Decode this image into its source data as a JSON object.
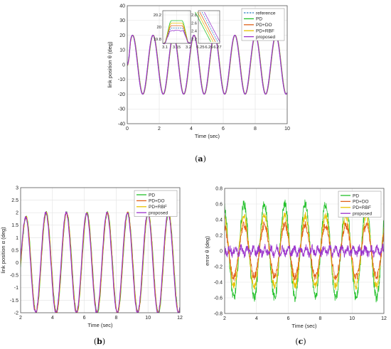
{
  "colors": {
    "reference": "#2f7fc1",
    "PD": "#22c02a",
    "PD+DO": "#e0601a",
    "PD+RBF": "#e8c200",
    "proposed": "#9932cc",
    "grid": "#e2e2e2",
    "box": "#444444"
  },
  "chart_data": [
    {
      "id": "a",
      "type": "line",
      "caption_letter": "a",
      "xlabel": "Time (sec)",
      "ylabel": "link position θ (deg)",
      "xlim": [
        0,
        10
      ],
      "ylim": [
        -40,
        40
      ],
      "xticks": [
        0,
        2,
        4,
        6,
        8,
        10
      ],
      "yticks": [
        -40,
        -30,
        -20,
        -10,
        0,
        10,
        20,
        30,
        40
      ],
      "grid": true,
      "legend_position": "top-right",
      "signal": {
        "form": "sine",
        "amplitude_deg": 20,
        "period_sec": 1.28
      },
      "series": [
        {
          "name": "reference",
          "style": "dashed"
        },
        {
          "name": "PD"
        },
        {
          "name": "PD+DO"
        },
        {
          "name": "PD+RBF"
        },
        {
          "name": "proposed"
        }
      ],
      "insets": [
        {
          "xticks": [
            "3.1",
            "3.15",
            "3.2"
          ],
          "yticks": [
            "19.8",
            "20",
            "20.2"
          ]
        },
        {
          "xticks": [
            "6.25",
            "6.26",
            "6.27"
          ],
          "yticks": [
            "2.2",
            "2.4",
            "2.6",
            "2.8"
          ]
        }
      ]
    },
    {
      "id": "b",
      "type": "line",
      "caption_letter": "b",
      "xlabel": "Time (sec)",
      "ylabel": "link position α (deg)",
      "xlim": [
        2,
        12
      ],
      "ylim": [
        -2,
        3
      ],
      "xticks": [
        2,
        4,
        6,
        8,
        10,
        12
      ],
      "yticks": [
        "-2",
        "-1.5",
        "-1",
        "-0.5",
        "0",
        "0.5",
        "1",
        "1.5",
        "2",
        "2.5",
        "3"
      ],
      "grid": true,
      "legend_position": "top-right",
      "signal": {
        "form": "sine",
        "amplitude_deg": 2,
        "period_sec": 1.28
      },
      "series": [
        {
          "name": "PD"
        },
        {
          "name": "PD+DO"
        },
        {
          "name": "PD+RBF"
        },
        {
          "name": "proposed"
        }
      ]
    },
    {
      "id": "c",
      "type": "line",
      "caption_letter": "c",
      "xlabel": "Time (sec)",
      "ylabel": "error θ (deg)",
      "xlim": [
        2,
        12
      ],
      "ylim": [
        -0.8,
        0.8
      ],
      "xticks": [
        2,
        4,
        6,
        8,
        10,
        12
      ],
      "yticks": [
        "-0.8",
        "-0.6",
        "-0.4",
        "-0.2",
        "0",
        "0.2",
        "0.4",
        "0.6",
        "0.8"
      ],
      "grid": true,
      "legend_position": "top-right",
      "signal": {
        "form": "sine",
        "period_sec": 1.28
      },
      "series": [
        {
          "name": "PD",
          "amplitude": 0.6,
          "noise": 0.06
        },
        {
          "name": "PD+DO",
          "amplitude": 0.33,
          "noise": 0.05
        },
        {
          "name": "PD+RBF",
          "amplitude": 0.45,
          "noise": 0.05
        },
        {
          "name": "proposed",
          "amplitude": 0.04,
          "noise": 0.05
        }
      ]
    }
  ]
}
